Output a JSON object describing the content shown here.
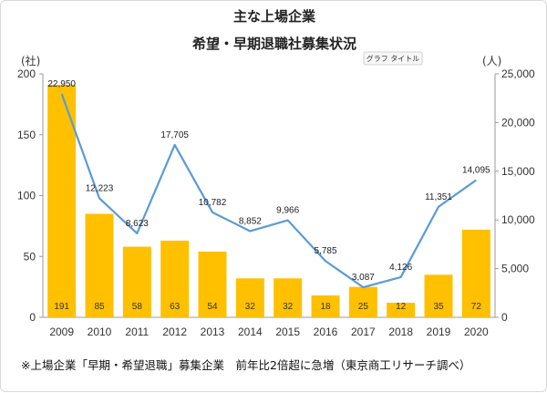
{
  "chart_data": {
    "type": "bar",
    "title": "主な上場企業",
    "subtitle": "希望・早期退職社募集状況",
    "tooltip": "グラフ タイトル",
    "y_left_unit": "(社)",
    "y_right_unit": "(人)",
    "ylim_left": [
      0,
      200
    ],
    "ylim_right": [
      0,
      25000
    ],
    "yticks_left": [
      "0",
      "50",
      "100",
      "150",
      "200"
    ],
    "yticks_right": [
      "0",
      "5,000",
      "10,000",
      "15,000",
      "20,000",
      "25,000"
    ],
    "categories": [
      "2009",
      "2010",
      "2011",
      "2012",
      "2013",
      "2014",
      "2015",
      "2016",
      "2017",
      "2018",
      "2019",
      "2020"
    ],
    "series": [
      {
        "type": "bar",
        "axis": "left",
        "color": "#FFC000",
        "values": [
          191,
          85,
          58,
          63,
          54,
          32,
          32,
          18,
          25,
          12,
          35,
          72
        ],
        "labels": [
          "191",
          "85",
          "58",
          "63",
          "54",
          "32",
          "32",
          "18",
          "25",
          "12",
          "35",
          "72"
        ]
      },
      {
        "type": "line",
        "axis": "right",
        "color": "#5B9BD5",
        "values": [
          22950,
          12223,
          8623,
          17705,
          10782,
          8852,
          9966,
          5785,
          3087,
          4126,
          11351,
          14095
        ],
        "labels": [
          "22,950",
          "12,223",
          "8,623",
          "17,705",
          "10,782",
          "8,852",
          "9,966",
          "5,785",
          "3,087",
          "4,126",
          "11,351",
          "14,095"
        ]
      }
    ],
    "grid": false,
    "note": "※上場企業「早期・希望退職」募集企業　前年比2倍超に急増（東京商工リサーチ調べ）"
  }
}
